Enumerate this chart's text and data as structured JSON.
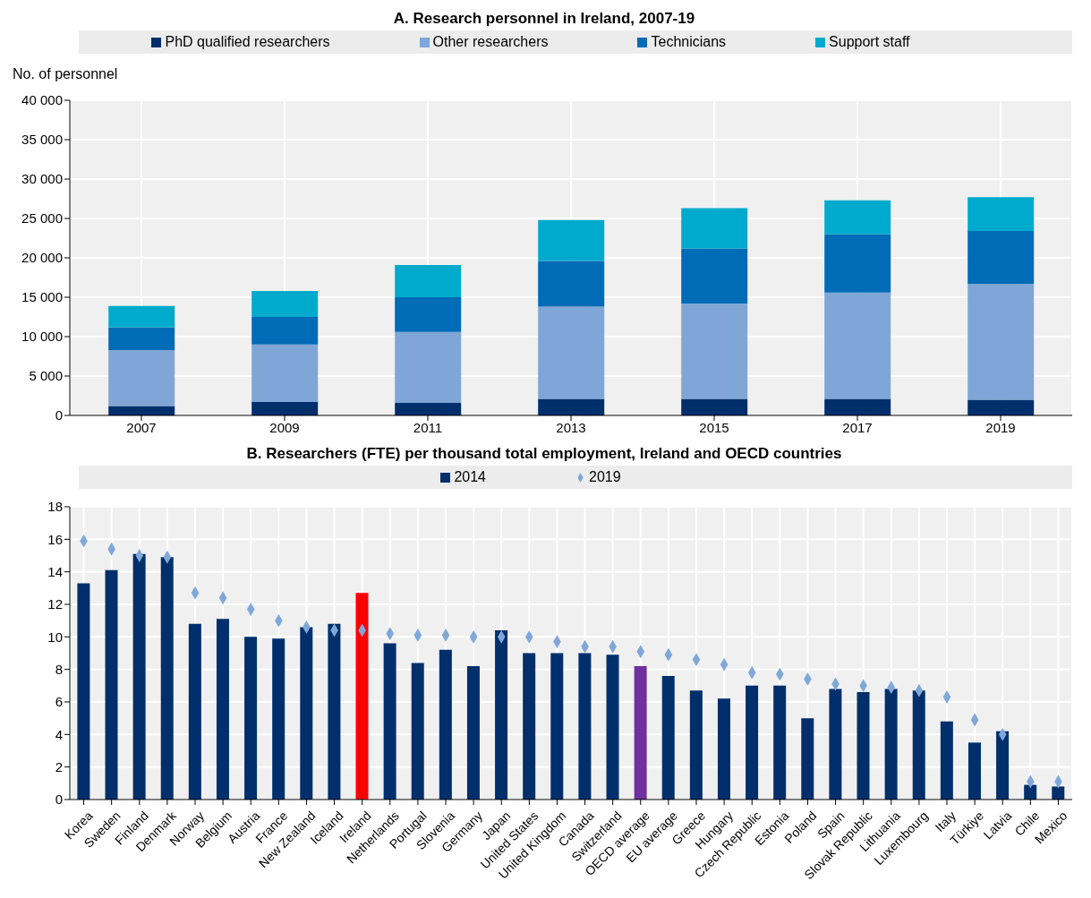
{
  "chart_data": [
    {
      "type": "bar",
      "title": "A. Research personnel in Ireland, 2007-19",
      "ylabel": "No. of personnel",
      "stacked": true,
      "categories": [
        "2007",
        "2009",
        "2011",
        "2013",
        "2015",
        "2017",
        "2019"
      ],
      "series": [
        {
          "name": "PhD qualified researchers",
          "color": "#002f6c",
          "values": [
            1200,
            1700,
            1600,
            2100,
            2100,
            2100,
            2000
          ]
        },
        {
          "name": "Other researchers",
          "color": "#7fa6d6",
          "values": [
            7100,
            7300,
            9000,
            11700,
            12100,
            13500,
            14700
          ]
        },
        {
          "name": "Technicians",
          "color": "#006bb6",
          "values": [
            2900,
            3500,
            4400,
            5800,
            7000,
            7400,
            6700
          ]
        },
        {
          "name": "Support staff",
          "color": "#00aacc",
          "values": [
            2700,
            3300,
            4100,
            5200,
            5100,
            4300,
            4300
          ]
        }
      ],
      "ylim": [
        0,
        40000
      ],
      "yticks": [
        0,
        {
          "value": 5000,
          "label": "5 000"
        },
        {
          "value": 10000,
          "label": "10 000"
        },
        {
          "value": 15000,
          "label": "15 000"
        },
        {
          "value": 20000,
          "label": "20 000"
        },
        {
          "value": 25000,
          "label": "25 000"
        },
        {
          "value": 30000,
          "label": "30 000"
        },
        {
          "value": 35000,
          "label": "35 000"
        },
        {
          "value": 40000,
          "label": "40 000"
        }
      ],
      "grid": true,
      "legend": "top"
    },
    {
      "type": "bar",
      "title": "B. Researchers (FTE) per thousand total employment, Ireland and OECD countries",
      "categories": [
        "Korea",
        "Sweden",
        "Finland",
        "Denmark",
        "Norway",
        "Belgium",
        "Austria",
        "France",
        "New Zealand",
        "Iceland",
        "Ireland",
        "Netherlands",
        "Portugal",
        "Slovenia",
        "Germany",
        "Japan",
        "United States",
        "United Kingdom",
        "Canada",
        "Switzerland",
        "OECD average",
        "EU average",
        "Greece",
        "Hungary",
        "Czech Republic",
        "Estonia",
        "Poland",
        "Spain",
        "Slovak Republic",
        "Lithuania",
        "Luxembourg",
        "Italy",
        "Türkiye",
        "Latvia",
        "Chile",
        "Mexico"
      ],
      "series": [
        {
          "name": "2014",
          "type": "bar",
          "color": "#002f6c",
          "colors": [
            "#002f6c",
            "#002f6c",
            "#002f6c",
            "#002f6c",
            "#002f6c",
            "#002f6c",
            "#002f6c",
            "#002f6c",
            "#002f6c",
            "#002f6c",
            "#ff0000",
            "#002f6c",
            "#002f6c",
            "#002f6c",
            "#002f6c",
            "#002f6c",
            "#002f6c",
            "#002f6c",
            "#002f6c",
            "#002f6c",
            "#7030a0",
            "#002f6c",
            "#002f6c",
            "#002f6c",
            "#002f6c",
            "#002f6c",
            "#002f6c",
            "#002f6c",
            "#002f6c",
            "#002f6c",
            "#002f6c",
            "#002f6c",
            "#002f6c",
            "#002f6c",
            "#002f6c",
            "#002f6c"
          ],
          "values": [
            13.3,
            14.1,
            15.1,
            14.9,
            10.8,
            11.1,
            10.0,
            9.9,
            10.6,
            10.8,
            12.7,
            9.6,
            8.4,
            9.2,
            8.2,
            10.4,
            9.0,
            9.0,
            9.0,
            8.9,
            8.2,
            7.6,
            6.7,
            6.2,
            7.0,
            7.0,
            5.0,
            6.8,
            6.6,
            6.8,
            6.7,
            4.8,
            3.5,
            4.2,
            0.9,
            0.8
          ]
        },
        {
          "name": "2019",
          "type": "scatter",
          "color": "#7fa8d9",
          "values": [
            15.9,
            15.4,
            15.0,
            14.9,
            12.7,
            12.4,
            11.7,
            11.0,
            10.6,
            10.4,
            10.4,
            10.2,
            10.1,
            10.1,
            10.0,
            10.0,
            10.0,
            9.7,
            9.4,
            9.4,
            9.1,
            8.9,
            8.6,
            8.3,
            7.8,
            7.7,
            7.4,
            7.1,
            7.0,
            6.9,
            6.7,
            6.3,
            4.9,
            4.0,
            1.1,
            1.1
          ]
        }
      ],
      "marker": "diamond",
      "ylim": [
        0,
        18
      ],
      "yticks": [
        0,
        2,
        4,
        6,
        8,
        10,
        12,
        14,
        16,
        18
      ],
      "grid": true,
      "legend": "top"
    }
  ]
}
